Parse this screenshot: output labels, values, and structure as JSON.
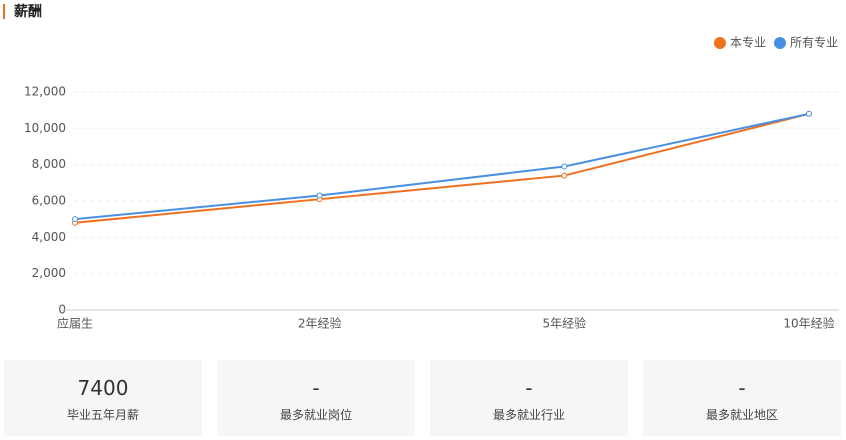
{
  "header": {
    "title": "薪酬"
  },
  "chart_data": {
    "type": "line",
    "categories": [
      "应届生",
      "2年经验",
      "5年经验",
      "10年经验"
    ],
    "series": [
      {
        "name": "本专业",
        "color": "#f07020",
        "values": [
          4800,
          6100,
          7400,
          10800
        ]
      },
      {
        "name": "所有专业",
        "color": "#4a90e2",
        "values": [
          5000,
          6300,
          7900,
          10800
        ]
      }
    ],
    "ylim": [
      0,
      12000
    ],
    "yticks": [
      0,
      {
        "value": 2000,
        "label": "2,000"
      },
      {
        "value": 4000,
        "label": "4,000"
      },
      {
        "value": 6000,
        "label": "6,000"
      },
      {
        "value": 8000,
        "label": "8,000"
      },
      {
        "value": 10000,
        "label": "10,000"
      },
      {
        "value": 12000,
        "label": "12,000"
      }
    ],
    "grid": true,
    "legend": "top-right"
  },
  "cards": [
    {
      "value": 7400,
      "label": "毕业五年月薪"
    },
    {
      "value": "-",
      "label": "最多就业岗位"
    },
    {
      "value": "-",
      "label": "最多就业行业"
    },
    {
      "value": "-",
      "label": "最多就业地区"
    }
  ]
}
